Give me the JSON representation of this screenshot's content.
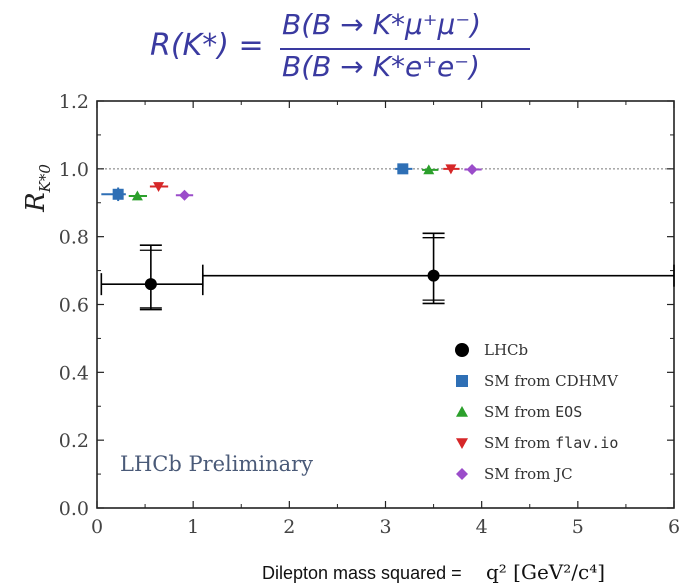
{
  "formula": {
    "lhs": "R(K*) =",
    "numerator": "B(B → K*μ⁺μ⁻)",
    "denominator": "B(B → K*e⁺e⁻)"
  },
  "chart_data": {
    "type": "scatter",
    "title": "",
    "ylabel": "R_K*0",
    "xlabel_text": "Dilepton mass squared =",
    "xlabel_math": "q² [GeV²/c⁴]",
    "xlim": [
      0,
      6
    ],
    "ylim": [
      0.0,
      1.2
    ],
    "xticks": [
      0,
      1,
      2,
      3,
      4,
      5,
      6
    ],
    "yticks": [
      0.0,
      0.2,
      0.4,
      0.6,
      0.8,
      1.0,
      1.2
    ],
    "reference_line": 1.0,
    "annotation": "LHCb Preliminary",
    "legend_position": "bottom-right",
    "series": [
      {
        "name": "LHCb",
        "marker": "circle",
        "color": "#000000",
        "points": [
          {
            "x": 0.56,
            "y": 0.66,
            "xlo": 0.045,
            "xhi": 1.1,
            "ylo": 0.585,
            "yhi": 0.775,
            "ylo2": 0.59,
            "yhi2": 0.76
          },
          {
            "x": 3.5,
            "y": 0.685,
            "xlo": 1.1,
            "xhi": 6.0,
            "ylo": 0.603,
            "yhi": 0.81,
            "ylo2": 0.613,
            "yhi2": 0.797
          }
        ]
      },
      {
        "name": "SM from CDHMV",
        "marker": "square",
        "color": "#2e6fb5",
        "points": [
          {
            "x": 0.22,
            "y": 0.925,
            "xlo": 0.045,
            "xhi": 0.3,
            "ylo": 0.905,
            "yhi": 0.945
          },
          {
            "x": 3.18,
            "y": 1.0,
            "xlo": 3.1,
            "xhi": 3.28,
            "ylo": 0.99,
            "yhi": 1.01
          }
        ]
      },
      {
        "name": "SM from EOS",
        "marker": "triangle-up",
        "color": "#2ca02c",
        "points": [
          {
            "x": 0.42,
            "y": 0.92,
            "xlo": 0.33,
            "xhi": 0.52,
            "ylo": 0.91,
            "yhi": 0.93
          },
          {
            "x": 3.45,
            "y": 0.997,
            "xlo": 3.38,
            "xhi": 3.55,
            "ylo": 0.99,
            "yhi": 1.005
          }
        ]
      },
      {
        "name": "SM from flav.io",
        "marker": "triangle-down",
        "color": "#d62728",
        "points": [
          {
            "x": 0.64,
            "y": 0.948,
            "xlo": 0.55,
            "xhi": 0.74,
            "ylo": 0.94,
            "yhi": 0.957
          },
          {
            "x": 3.68,
            "y": 1.0,
            "xlo": 3.6,
            "xhi": 3.77,
            "ylo": 0.993,
            "yhi": 1.008
          }
        ]
      },
      {
        "name": "SM from JC",
        "marker": "diamond",
        "color": "#9b4dca",
        "points": [
          {
            "x": 0.91,
            "y": 0.922,
            "xlo": 0.82,
            "xhi": 1.0,
            "ylo": 0.913,
            "yhi": 0.932
          },
          {
            "x": 3.9,
            "y": 0.998,
            "xlo": 3.82,
            "xhi": 4.0,
            "ylo": 0.99,
            "yhi": 1.006
          }
        ]
      }
    ]
  }
}
